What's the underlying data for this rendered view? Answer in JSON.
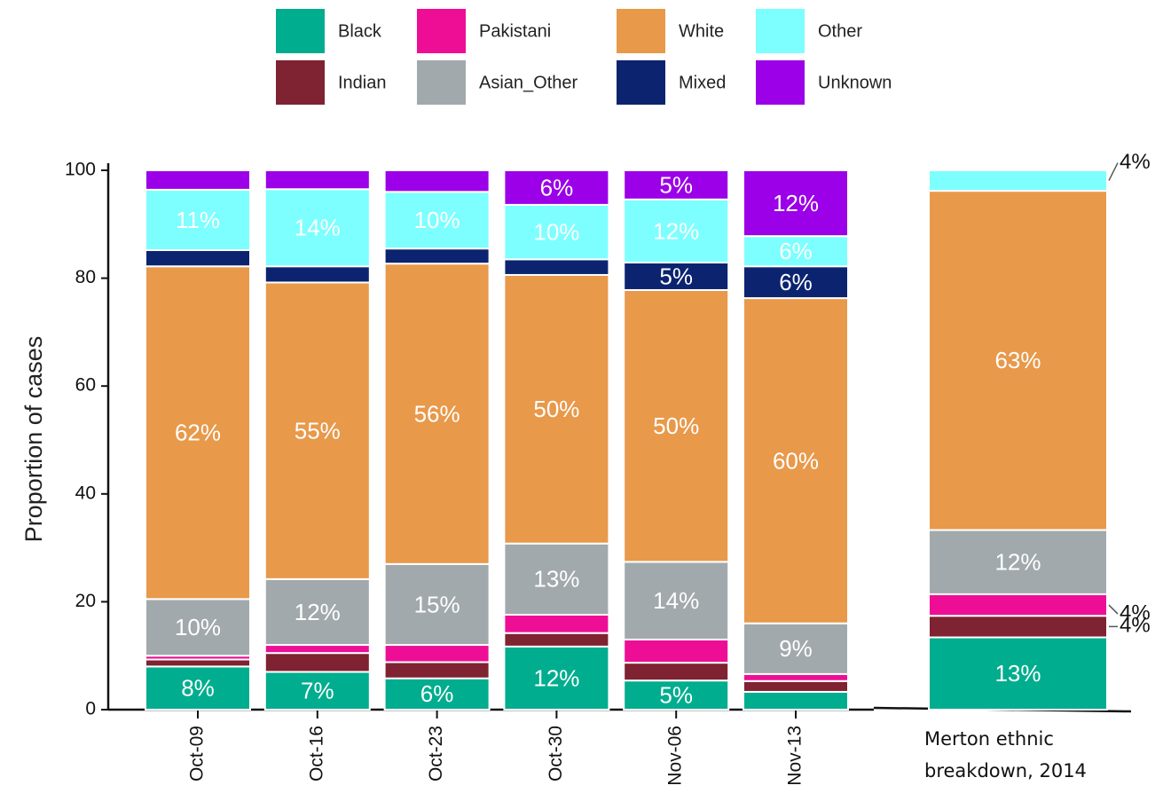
{
  "chart_data": {
    "type": "stacked_bar",
    "y_label": "Proportion of cases",
    "categories": [
      "Oct-09",
      "Oct-16",
      "Oct-23",
      "Oct-30",
      "Nov-06",
      "Nov-13",
      "Merton ethnic breakdown, 2014"
    ],
    "ylim": [
      0,
      100
    ],
    "yticks": [
      0,
      20,
      40,
      60,
      80,
      100
    ],
    "series": [
      {
        "name": "Black",
        "color": "#00ad8e",
        "values": [
          8,
          7,
          5.8,
          11.7,
          5.4,
          3.3,
          13.4
        ],
        "value_labels": [
          "8%",
          "7%",
          "6%",
          "12%",
          "5%",
          null,
          "13%"
        ]
      },
      {
        "name": "Indian",
        "color": "#7f2231",
        "values": [
          1.3,
          3.5,
          3,
          2.5,
          3.3,
          2,
          4
        ],
        "value_labels": [
          null,
          null,
          null,
          null,
          null,
          null,
          "4%"
        ]
      },
      {
        "name": "Pakistani",
        "color": "#ee0e96",
        "values": [
          0.7,
          1.5,
          3.2,
          3.4,
          4.3,
          1.3,
          4
        ],
        "value_labels": [
          null,
          null,
          null,
          null,
          null,
          null,
          "4%"
        ]
      },
      {
        "name": "Asian_Other",
        "color": "#a2a9ad",
        "values": [
          10.5,
          12.2,
          15,
          13.2,
          14.4,
          9.4,
          11.9
        ],
        "value_labels": [
          "10%",
          "12%",
          "15%",
          "13%",
          "14%",
          "9%",
          "12%"
        ]
      },
      {
        "name": "White",
        "color": "#e8994a",
        "values": [
          61.7,
          55,
          55.7,
          49.8,
          50.4,
          60.3,
          62.9
        ],
        "value_labels": [
          "62%",
          "55%",
          "56%",
          "50%",
          "50%",
          "60%",
          "63%"
        ]
      },
      {
        "name": "Mixed",
        "color": "#0c2470",
        "values": [
          3,
          3,
          2.8,
          2.9,
          5.1,
          5.9,
          0
        ],
        "value_labels": [
          null,
          null,
          null,
          null,
          "5%",
          "6%",
          null
        ]
      },
      {
        "name": "Other",
        "color": "#7dffff",
        "values": [
          11.2,
          14.3,
          10.5,
          10.1,
          11.7,
          5.6,
          3.8
        ],
        "value_labels": [
          "11%",
          "14%",
          "10%",
          "10%",
          "12%",
          "6%",
          "4%"
        ]
      },
      {
        "name": "Unknown",
        "color": "#9b00e8",
        "values": [
          3.6,
          3.5,
          4,
          6.4,
          5.4,
          12.2,
          0
        ],
        "value_labels": [
          null,
          null,
          null,
          "6%",
          "5%",
          "12%",
          null
        ]
      }
    ]
  }
}
